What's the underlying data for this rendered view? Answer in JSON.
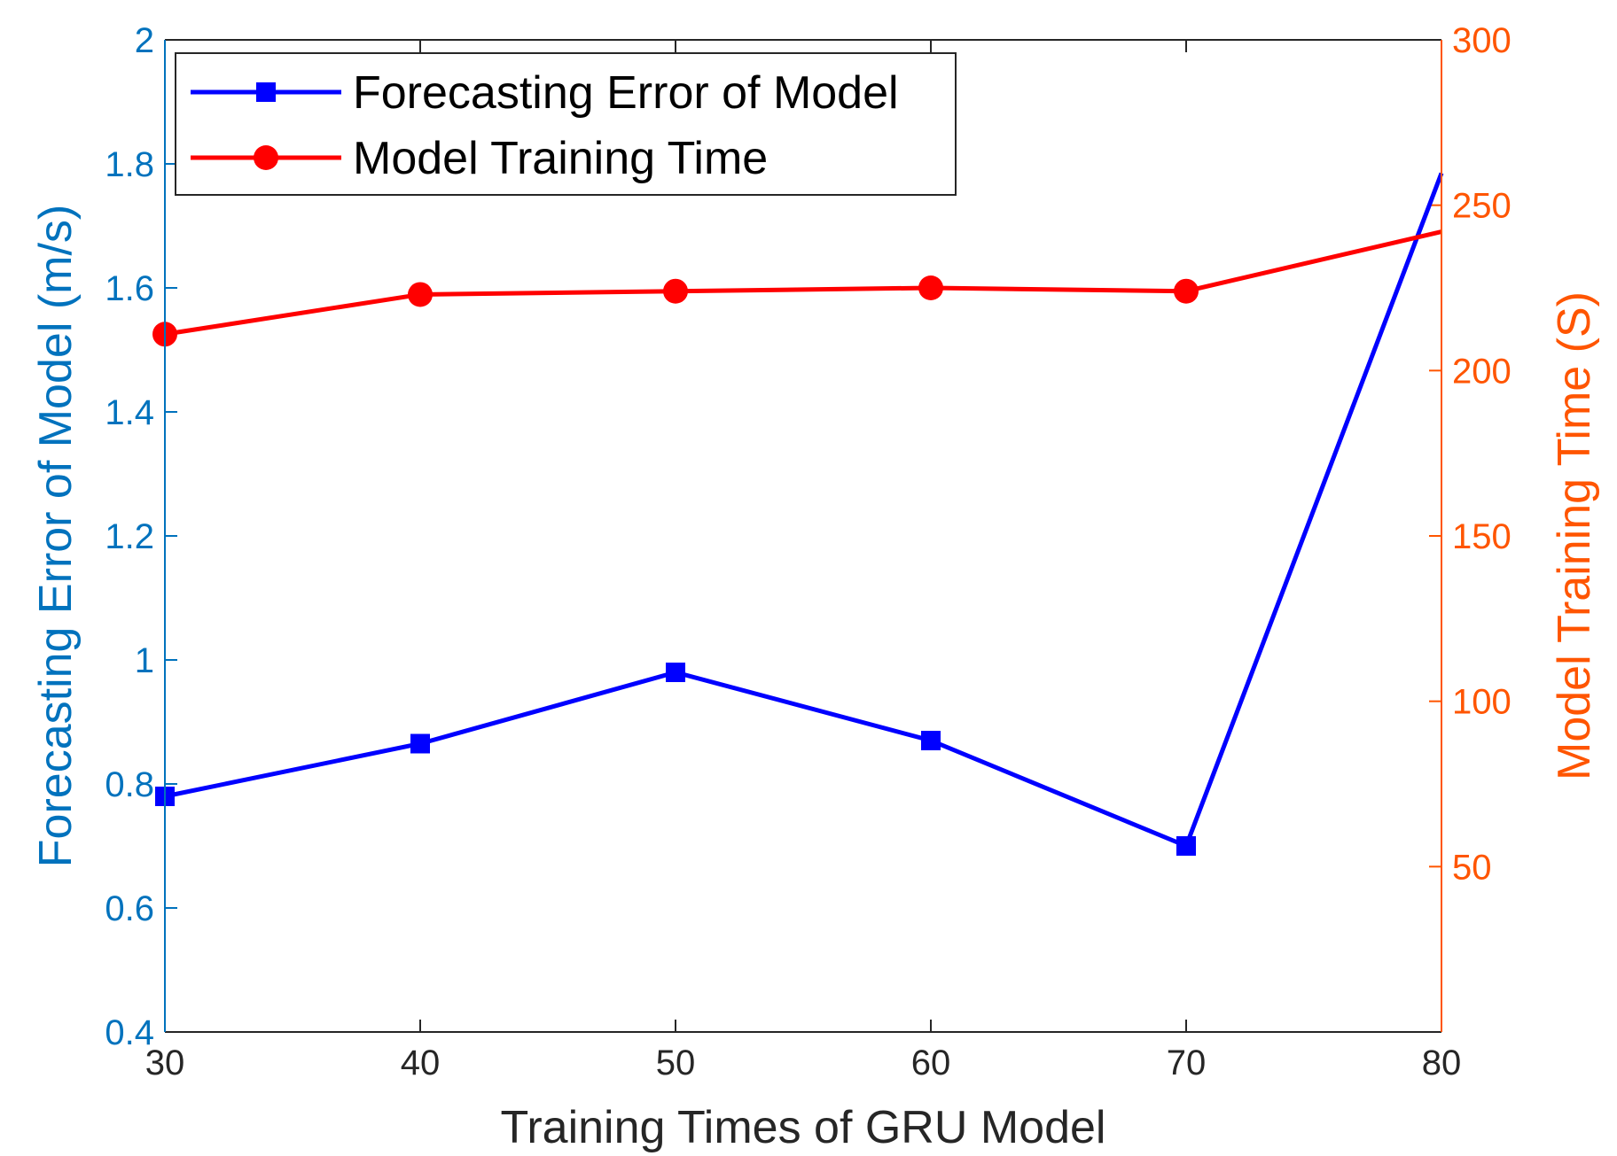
{
  "chart_data": {
    "type": "line",
    "x": [
      30,
      40,
      50,
      60,
      70,
      80
    ],
    "xlabel": "Training Times of GRU Model",
    "xlim": [
      30,
      80
    ],
    "xticks": [
      "30",
      "40",
      "50",
      "60",
      "70",
      "80"
    ],
    "y_left": {
      "label": "Forecasting Error of Model (m/s)",
      "lim": [
        0.4,
        2.0
      ],
      "ticks": [
        "0.4",
        "0.6",
        "0.8",
        "1",
        "1.2",
        "1.4",
        "1.6",
        "1.8",
        "2"
      ],
      "tick_values": [
        0.4,
        0.6,
        0.8,
        1.0,
        1.2,
        1.4,
        1.6,
        1.8,
        2.0
      ],
      "color": "#0072BD"
    },
    "y_right": {
      "label": "Model Training Time (S)",
      "lim": [
        0,
        300
      ],
      "ticks": [
        "50",
        "100",
        "150",
        "200",
        "250",
        "300"
      ],
      "tick_values": [
        50,
        100,
        150,
        200,
        250,
        300
      ],
      "color": "#FF5500"
    },
    "series": [
      {
        "name": "Forecasting Error of Model",
        "axis": "left",
        "color": "#0000FF",
        "marker": "square",
        "values": [
          0.78,
          0.865,
          0.98,
          0.87,
          0.7,
          1.785
        ]
      },
      {
        "name": "Model Training Time",
        "axis": "right",
        "color": "#FF0000",
        "marker": "circle",
        "values": [
          211,
          223,
          224,
          225,
          224,
          242
        ]
      }
    ],
    "legend": {
      "position": "top-left"
    },
    "grid": false
  }
}
